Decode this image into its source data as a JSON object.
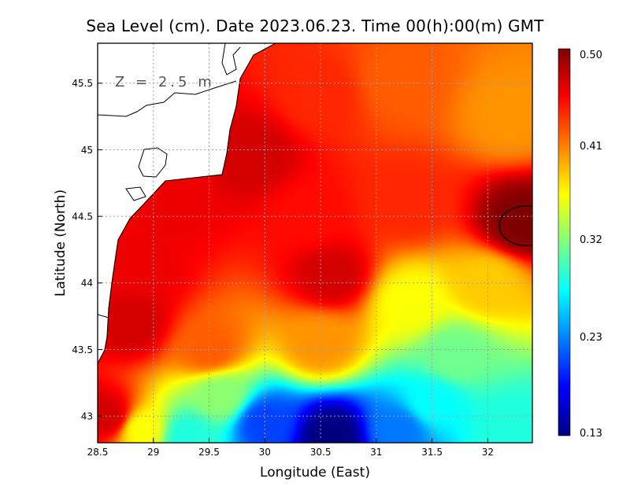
{
  "chart_data": {
    "type": "heatmap",
    "title": "Sea Level (cm). Date 2023.06.23. Time 00(h):00(m) GMT",
    "annotation": "Z = 2.5 m",
    "xlabel": "Longitude (East)",
    "ylabel": "Latitude (North)",
    "xlim": [
      28.5,
      32.4
    ],
    "ylim": [
      42.8,
      45.8
    ],
    "x_ticks": [
      "28.5",
      "29",
      "29.5",
      "30",
      "30.5",
      "31",
      "31.5",
      "32"
    ],
    "y_ticks": [
      "43",
      "43.5",
      "44",
      "44.5",
      "45",
      "45.5"
    ],
    "grid": true,
    "colorbar": {
      "ticks": [
        "0.50",
        "0.41",
        "0.32",
        "0.23",
        "0.13"
      ],
      "min": 0.13,
      "max": 0.5,
      "colors": [
        "#00007f",
        "#0000ff",
        "#007fff",
        "#00ffff",
        "#7fff7f",
        "#ffff00",
        "#ff7f00",
        "#ff0000",
        "#7f0000"
      ]
    },
    "values": [
      {
        "lon": 32.2,
        "lat": 45.25,
        "value": 0.4
      },
      {
        "lon": 31.2,
        "lat": 45.5,
        "value": 0.42
      },
      {
        "lon": 30.5,
        "lat": 45.4,
        "value": 0.44
      },
      {
        "lon": 29.9,
        "lat": 44.95,
        "value": 0.47
      },
      {
        "lon": 29.2,
        "lat": 44.6,
        "value": 0.46
      },
      {
        "lon": 28.9,
        "lat": 44.1,
        "value": 0.46
      },
      {
        "lon": 28.8,
        "lat": 43.7,
        "value": 0.47
      },
      {
        "lon": 28.6,
        "lat": 43.0,
        "value": 0.47
      },
      {
        "lon": 30.6,
        "lat": 44.05,
        "value": 0.47
      },
      {
        "lon": 30.4,
        "lat": 44.5,
        "value": 0.45
      },
      {
        "lon": 32.3,
        "lat": 44.45,
        "value": 0.5
      },
      {
        "lon": 31.3,
        "lat": 44.6,
        "value": 0.44
      },
      {
        "lon": 32.0,
        "lat": 44.0,
        "value": 0.38
      },
      {
        "lon": 31.3,
        "lat": 43.85,
        "value": 0.36
      },
      {
        "lon": 30.5,
        "lat": 43.55,
        "value": 0.4
      },
      {
        "lon": 29.5,
        "lat": 43.5,
        "value": 0.42
      },
      {
        "lon": 31.7,
        "lat": 43.45,
        "value": 0.31
      },
      {
        "lon": 29.6,
        "lat": 43.15,
        "value": 0.32
      },
      {
        "lon": 31.5,
        "lat": 43.1,
        "value": 0.27
      },
      {
        "lon": 29.3,
        "lat": 42.85,
        "value": 0.28
      },
      {
        "lon": 30.6,
        "lat": 42.85,
        "value": 0.13
      },
      {
        "lon": 30.0,
        "lat": 42.95,
        "value": 0.2
      },
      {
        "lon": 31.2,
        "lat": 42.9,
        "value": 0.22
      },
      {
        "lon": 32.2,
        "lat": 42.9,
        "value": 0.28
      },
      {
        "lon": 28.9,
        "lat": 42.9,
        "value": 0.36
      }
    ]
  }
}
